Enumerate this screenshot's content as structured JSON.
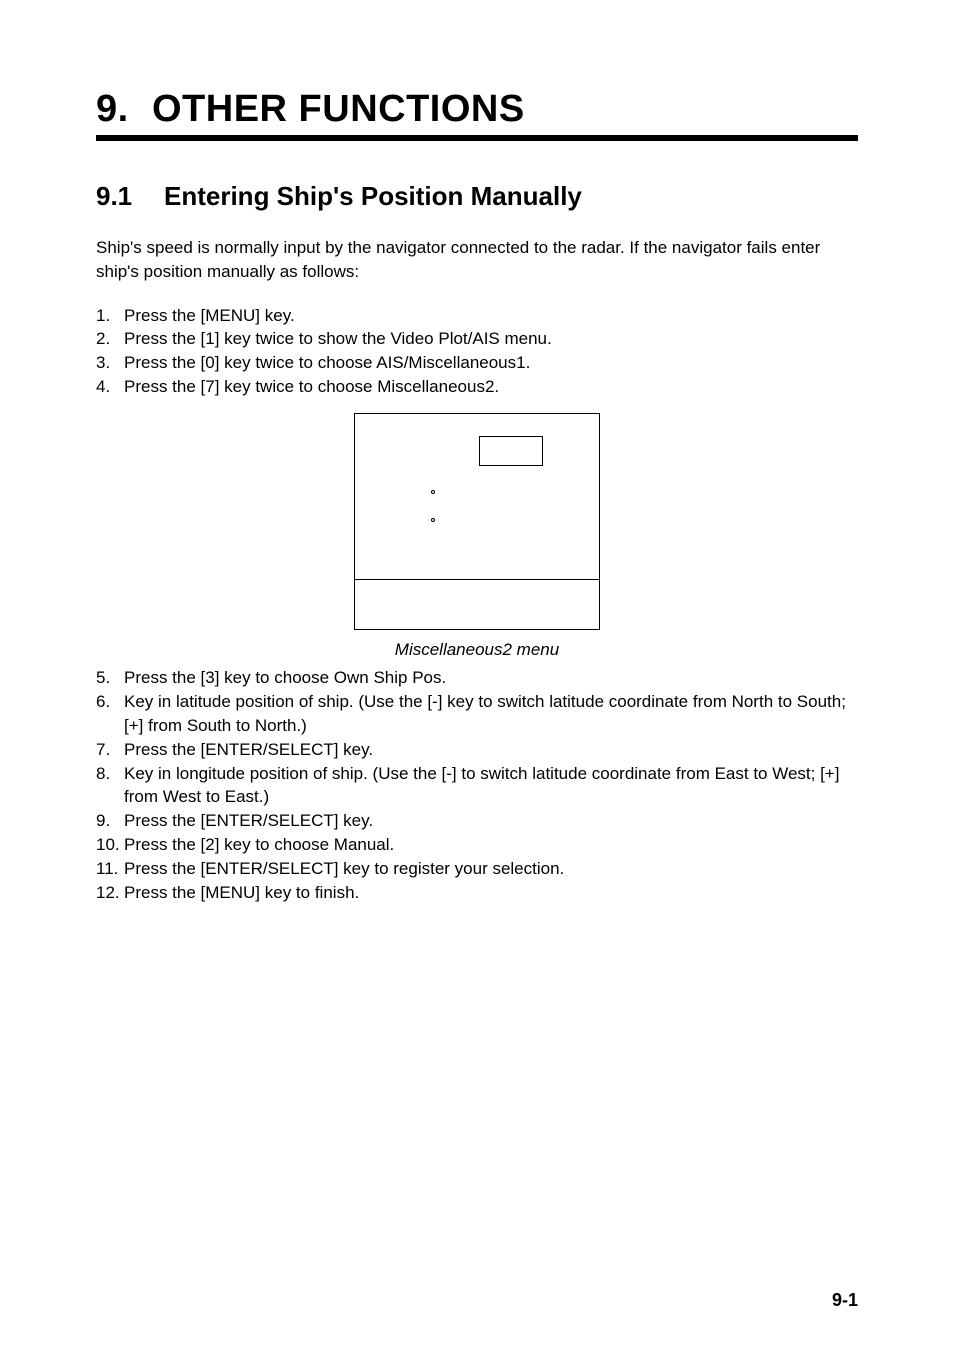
{
  "chapter": {
    "number": "9.",
    "title": "OTHER FUNCTIONS"
  },
  "section": {
    "number": "9.1",
    "title": "Entering Ship's Position Manually"
  },
  "intro": "Ship's speed is normally input by the navigator connected to the radar. If the navigator fails enter ship's position manually as follows:",
  "steps1": [
    {
      "n": "1.",
      "t": "Press the [MENU] key."
    },
    {
      "n": "2.",
      "t": "Press the [1] key twice to show the Video Plot/AIS menu."
    },
    {
      "n": "3.",
      "t": "Press the [0] key twice to choose AIS/Miscellaneous1."
    },
    {
      "n": "4.",
      "t": "Press the [7] key twice to choose Miscellaneous2."
    }
  ],
  "caption": "Miscellaneous2 menu",
  "steps2": [
    {
      "n": "5.",
      "t": "Press the [3] key to choose Own Ship Pos."
    },
    {
      "n": "6.",
      "t": "Key in latitude position of ship. (Use the [-] key to switch latitude coordinate from North to South; [+] from South to North.)"
    },
    {
      "n": "7.",
      "t": "Press the [ENTER/SELECT] key."
    },
    {
      "n": "8.",
      "t": "Key in longitude position of ship. (Use the [-] to switch latitude coordinate from East to West; [+] from West to East.)"
    },
    {
      "n": "9.",
      "t": "Press the [ENTER/SELECT] key."
    },
    {
      "n": "10.",
      "t": "Press the [2] key to choose Manual."
    },
    {
      "n": "11.",
      "t": "Press the [ENTER/SELECT] key to register your selection."
    },
    {
      "n": "12.",
      "t": "Press the [MENU] key to finish."
    }
  ],
  "page_number": "9-1"
}
